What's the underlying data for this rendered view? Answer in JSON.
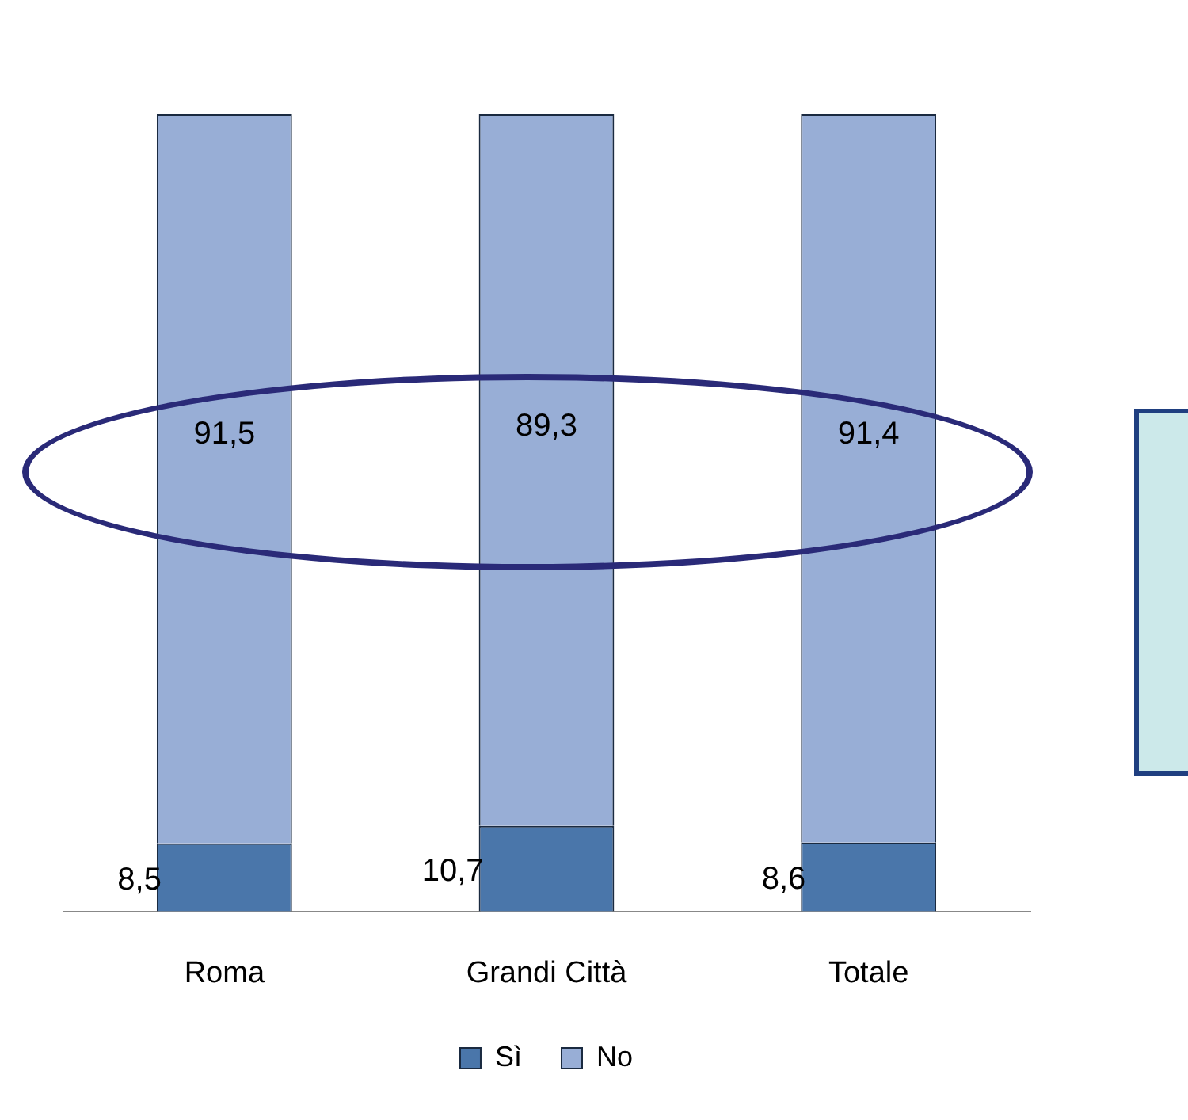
{
  "chart_data": {
    "type": "bar",
    "stacked": true,
    "categories": [
      "Roma",
      "Grandi Città",
      "Totale"
    ],
    "series": [
      {
        "name": "Sì",
        "color": "#4a76aa",
        "values": [
          8.5,
          10.7,
          8.6
        ],
        "value_labels": [
          "8,5",
          "10,7",
          "8,6"
        ]
      },
      {
        "name": "No",
        "color": "#98aed6",
        "values": [
          91.5,
          89.3,
          91.4
        ],
        "value_labels": [
          "91,5",
          "89,3",
          "91,4"
        ]
      }
    ],
    "legend": "bottom",
    "grid": false
  }
}
